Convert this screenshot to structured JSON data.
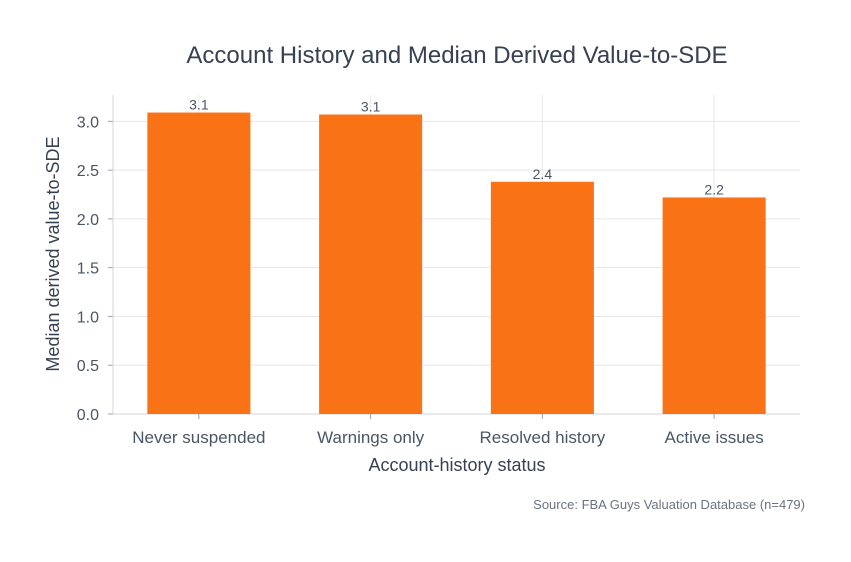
{
  "chart_data": {
    "type": "bar",
    "title": "Account History and Median Derived Value-to-SDE",
    "xlabel": "Account-history status",
    "ylabel": "Median derived value-to-SDE",
    "categories": [
      "Never suspended",
      "Warnings only",
      "Resolved history",
      "Active issues"
    ],
    "values": [
      3.09,
      3.07,
      2.38,
      2.22
    ],
    "data_labels": [
      "3.1",
      "3.1",
      "2.4",
      "2.2"
    ],
    "ylim": [
      0,
      3.27
    ],
    "yticks": [
      0.0,
      0.5,
      1.0,
      1.5,
      2.0,
      2.5,
      3.0
    ],
    "ytick_labels": [
      "0.0",
      "0.5",
      "1.0",
      "1.5",
      "2.0",
      "2.5",
      "3.0"
    ],
    "grid": true,
    "bar_color": "#f97316",
    "source": "Source: FBA Guys Valuation Database (n=479)"
  }
}
